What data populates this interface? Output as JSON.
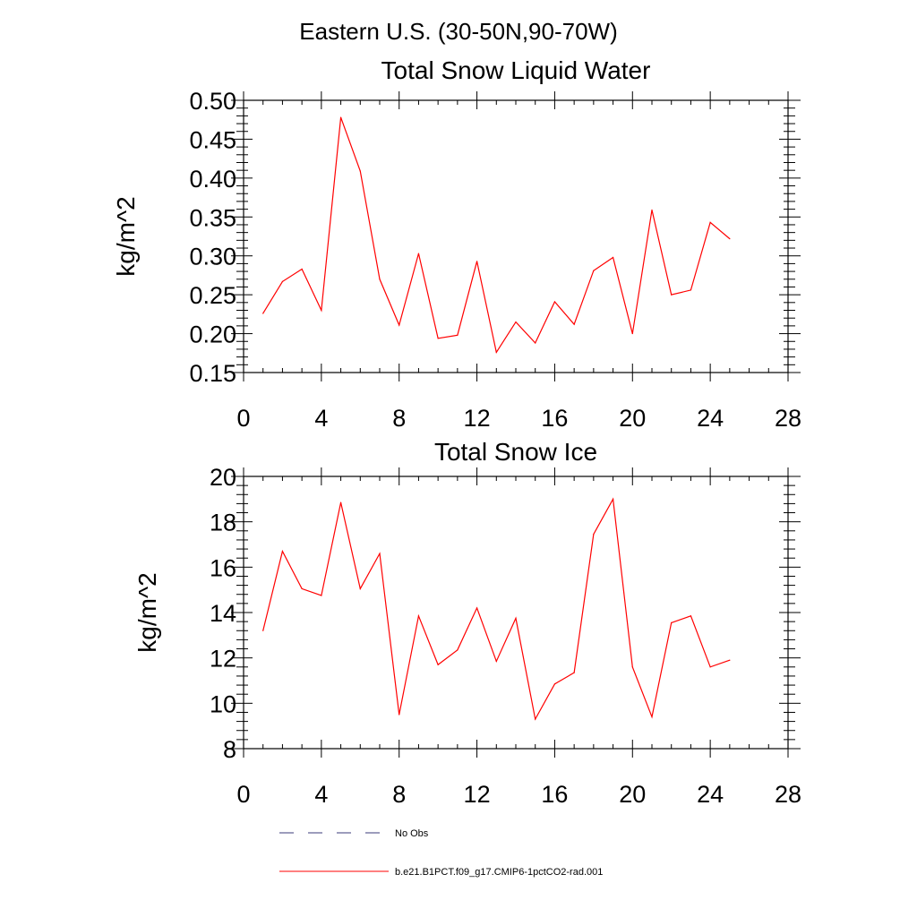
{
  "figure": {
    "suptitle": "Eastern U.S. (30-50N,90-70W)"
  },
  "chart_data": [
    {
      "type": "line",
      "title": "Total Snow Liquid Water",
      "xlabel": "",
      "ylabel": "kg/m^2",
      "xlim": [
        0,
        28
      ],
      "ylim": [
        0.15,
        0.5
      ],
      "xticks": [
        "0",
        "4",
        "8",
        "12",
        "16",
        "20",
        "24",
        "28"
      ],
      "yticks": [
        "0.15",
        "0.20",
        "0.25",
        "0.30",
        "0.35",
        "0.40",
        "0.45",
        "0.50"
      ],
      "grid": false,
      "series": [
        {
          "name": "b.e21.B1PCT.f09_g17.CMIP6-1pctCO2-rad.001",
          "color": "#ff0000",
          "x": [
            1,
            2,
            3,
            4,
            5,
            6,
            7,
            8,
            9,
            10,
            11,
            12,
            13,
            14,
            15,
            16,
            17,
            18,
            19,
            20,
            21,
            22,
            23,
            24,
            25
          ],
          "values": [
            0.226,
            0.267,
            0.283,
            0.23,
            0.478,
            0.409,
            0.27,
            0.211,
            0.303,
            0.194,
            0.198,
            0.293,
            0.176,
            0.215,
            0.188,
            0.241,
            0.212,
            0.281,
            0.298,
            0.2,
            0.359,
            0.25,
            0.256,
            0.343,
            0.322
          ]
        }
      ]
    },
    {
      "type": "line",
      "title": "Total Snow Ice",
      "xlabel": "",
      "ylabel": "kg/m^2",
      "xlim": [
        0,
        28
      ],
      "ylim": [
        8,
        20
      ],
      "xticks": [
        "0",
        "4",
        "8",
        "12",
        "16",
        "20",
        "24",
        "28"
      ],
      "yticks": [
        "8",
        "10",
        "12",
        "14",
        "16",
        "18",
        "20"
      ],
      "grid": false,
      "series": [
        {
          "name": "b.e21.B1PCT.f09_g17.CMIP6-1pctCO2-rad.001",
          "color": "#ff0000",
          "x": [
            1,
            2,
            3,
            4,
            5,
            6,
            7,
            8,
            9,
            10,
            11,
            12,
            13,
            14,
            15,
            16,
            17,
            18,
            19,
            20,
            21,
            22,
            23,
            24,
            25
          ],
          "values": [
            13.2,
            16.7,
            15.05,
            14.75,
            18.85,
            15.05,
            16.6,
            9.5,
            13.85,
            11.7,
            12.35,
            14.2,
            11.85,
            13.75,
            9.3,
            10.85,
            11.35,
            17.45,
            19.0,
            11.6,
            9.4,
            13.55,
            13.85,
            11.6,
            11.9
          ]
        }
      ]
    }
  ],
  "legend": {
    "placement": "bottom-left",
    "entries": [
      {
        "label": "No Obs",
        "style": "dashed",
        "color": "#3a3a7a"
      },
      {
        "label": "b.e21.B1PCT.f09_g17.CMIP6-1pctCO2-rad.001",
        "style": "solid",
        "color": "#ff0000"
      }
    ]
  }
}
